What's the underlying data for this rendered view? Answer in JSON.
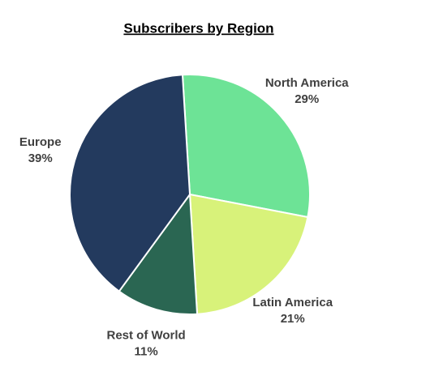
{
  "chart_data": {
    "type": "pie",
    "title": "Subscribers by Region",
    "categories": [
      "North America",
      "Latin America",
      "Rest of World",
      "Europe"
    ],
    "values": [
      29,
      21,
      11,
      39
    ],
    "value_labels": [
      "29%",
      "21%",
      "11%",
      "39%"
    ],
    "colors": [
      "#6de396",
      "#d8f27a",
      "#2a6652",
      "#233a5e"
    ]
  }
}
